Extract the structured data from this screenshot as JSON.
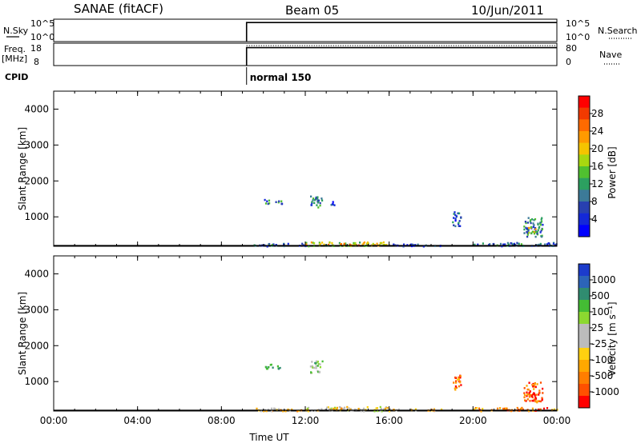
{
  "header": {
    "station": "SANAE (fitACF)",
    "beam": "Beam 05",
    "date": "10/Jun/2011"
  },
  "summary": {
    "nsky_label": "N.Sky",
    "nsearch_label": "N.Search",
    "freq_label": "Freq.",
    "freq_unit": "[MHz]",
    "nave_label": "Nave",
    "cpid_label": "CPID",
    "cpid_value": "normal 150",
    "noise_ticks": [
      "10^5",
      "10^0"
    ],
    "freq_ticks": [
      "18",
      "8"
    ],
    "nave_ticks": [
      "80",
      "0"
    ],
    "data_start_hour": 9.2,
    "nsky_level": 0.85,
    "freq_level": 0.8,
    "nave_level": 0.78
  },
  "chart_data": [
    {
      "type": "heatmap",
      "panel": "power",
      "ylabel": "Slant Range [km]",
      "xlabel": "",
      "xlim": [
        0,
        24
      ],
      "ylim": [
        180,
        4500
      ],
      "yticks": [
        "4000",
        "3000",
        "2000",
        "1000"
      ],
      "xticks": [
        "00:00",
        "04:00",
        "08:00",
        "12:00",
        "16:00",
        "20:00",
        "00:00"
      ],
      "colorbar": {
        "label": "Power [dB]",
        "ticks": [
          "28",
          "24",
          "20",
          "16",
          "12",
          "8",
          "4"
        ],
        "colors": [
          "#ff0000",
          "#f23a00",
          "#ff6a00",
          "#ff9a00",
          "#f5c400",
          "#a8d810",
          "#50c030",
          "#2ca060",
          "#3c7a98",
          "#2840b0",
          "#1428d8",
          "#0000ff"
        ]
      },
      "regions": [
        {
          "t0": 10.0,
          "t1": 10.9,
          "r0": 1380,
          "r1": 1500,
          "level": 0.3
        },
        {
          "t0": 12.2,
          "t1": 12.8,
          "r0": 1250,
          "r1": 1600,
          "level": 0.3
        },
        {
          "t0": 13.2,
          "t1": 13.4,
          "r0": 1350,
          "r1": 1450,
          "level": 0.2
        },
        {
          "t0": 12.0,
          "t1": 16.0,
          "r0": 200,
          "r1": 320,
          "level": 0.55
        },
        {
          "t0": 13.0,
          "t1": 15.0,
          "r0": 230,
          "r1": 300,
          "level": 0.7
        },
        {
          "t0": 9.5,
          "t1": 12.0,
          "r0": 200,
          "r1": 280,
          "level": 0.25
        },
        {
          "t0": 16.0,
          "t1": 18.5,
          "r0": 200,
          "r1": 260,
          "level": 0.2
        },
        {
          "t0": 19.0,
          "t1": 19.4,
          "r0": 750,
          "r1": 1200,
          "level": 0.2
        },
        {
          "t0": 22.4,
          "t1": 23.3,
          "r0": 450,
          "r1": 1000,
          "level": 0.3
        },
        {
          "t0": 22.6,
          "t1": 23.0,
          "r0": 550,
          "r1": 750,
          "level": 0.6
        },
        {
          "t0": 20.0,
          "t1": 24.0,
          "r0": 200,
          "r1": 300,
          "level": 0.25
        }
      ]
    },
    {
      "type": "heatmap",
      "panel": "velocity",
      "ylabel": "Slant Range [km]",
      "xlabel": "Time UT",
      "xlim": [
        0,
        24
      ],
      "ylim": [
        180,
        4500
      ],
      "yticks": [
        "4000",
        "3000",
        "2000",
        "1000"
      ],
      "xticks": [
        "00:00",
        "04:00",
        "08:00",
        "12:00",
        "16:00",
        "20:00",
        "00:00"
      ],
      "colorbar": {
        "label": "Velocity [m s⁻¹]",
        "ticks": [
          "1000",
          "500",
          "100",
          "25",
          "-25",
          "-100",
          "-500",
          "-1000"
        ],
        "colors": [
          "#1c3ccc",
          "#2c64b8",
          "#308c70",
          "#44bc34",
          "#8cd830",
          "#bcbcbc",
          "#bcbcbc",
          "#ffd010",
          "#ffa800",
          "#ff7e00",
          "#ff5000",
          "#ff0000"
        ]
      },
      "regions": [
        {
          "t0": 10.0,
          "t1": 10.9,
          "r0": 1380,
          "r1": 1500,
          "level": 0.75
        },
        {
          "t0": 12.2,
          "t1": 12.8,
          "r0": 1250,
          "r1": 1600,
          "level": 0.62
        },
        {
          "t0": 12.0,
          "t1": 16.0,
          "r0": 200,
          "r1": 320,
          "level": 0.45
        },
        {
          "t0": 13.0,
          "t1": 15.0,
          "r0": 230,
          "r1": 300,
          "level": 0.38
        },
        {
          "t0": 9.5,
          "t1": 12.0,
          "r0": 200,
          "r1": 280,
          "level": 0.38
        },
        {
          "t0": 16.0,
          "t1": 18.5,
          "r0": 200,
          "r1": 260,
          "level": 0.35
        },
        {
          "t0": 19.0,
          "t1": 19.4,
          "r0": 750,
          "r1": 1200,
          "level": 0.2
        },
        {
          "t0": 22.4,
          "t1": 23.3,
          "r0": 450,
          "r1": 1000,
          "level": 0.15
        },
        {
          "t0": 22.6,
          "t1": 23.0,
          "r0": 550,
          "r1": 750,
          "level": 0.08
        },
        {
          "t0": 20.0,
          "t1": 24.0,
          "r0": 200,
          "r1": 300,
          "level": 0.2
        }
      ]
    }
  ]
}
